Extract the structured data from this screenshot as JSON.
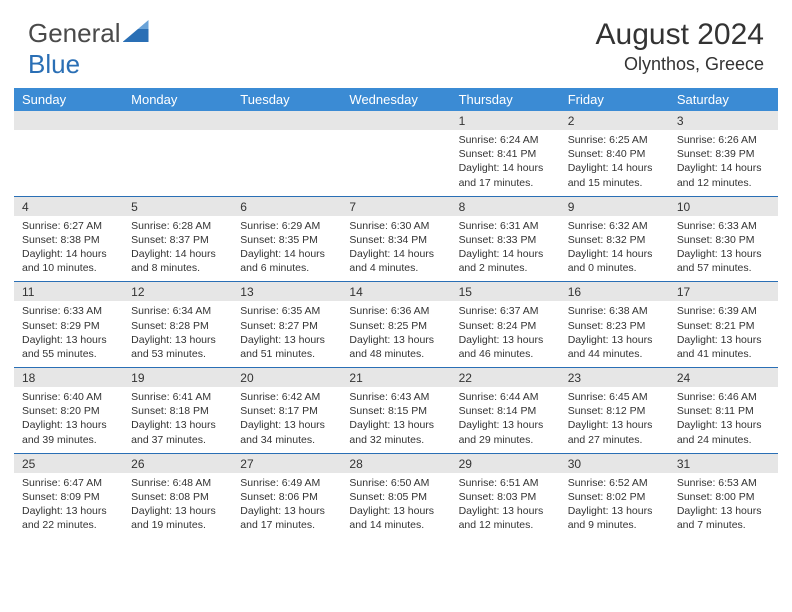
{
  "brand": {
    "part1": "General",
    "part2": "Blue"
  },
  "title": "August 2024",
  "location": "Olynthos, Greece",
  "colors": {
    "header_bg": "#3b8bd4",
    "band_bg": "#e6e6e6",
    "week_border": "#2a6fb5",
    "text": "#333333",
    "brand_blue": "#2a6fb5"
  },
  "day_names": [
    "Sunday",
    "Monday",
    "Tuesday",
    "Wednesday",
    "Thursday",
    "Friday",
    "Saturday"
  ],
  "weeks": [
    [
      {
        "num": "",
        "lines": []
      },
      {
        "num": "",
        "lines": []
      },
      {
        "num": "",
        "lines": []
      },
      {
        "num": "",
        "lines": []
      },
      {
        "num": "1",
        "lines": [
          "Sunrise: 6:24 AM",
          "Sunset: 8:41 PM",
          "Daylight: 14 hours",
          "and 17 minutes."
        ]
      },
      {
        "num": "2",
        "lines": [
          "Sunrise: 6:25 AM",
          "Sunset: 8:40 PM",
          "Daylight: 14 hours",
          "and 15 minutes."
        ]
      },
      {
        "num": "3",
        "lines": [
          "Sunrise: 6:26 AM",
          "Sunset: 8:39 PM",
          "Daylight: 14 hours",
          "and 12 minutes."
        ]
      }
    ],
    [
      {
        "num": "4",
        "lines": [
          "Sunrise: 6:27 AM",
          "Sunset: 8:38 PM",
          "Daylight: 14 hours",
          "and 10 minutes."
        ]
      },
      {
        "num": "5",
        "lines": [
          "Sunrise: 6:28 AM",
          "Sunset: 8:37 PM",
          "Daylight: 14 hours",
          "and 8 minutes."
        ]
      },
      {
        "num": "6",
        "lines": [
          "Sunrise: 6:29 AM",
          "Sunset: 8:35 PM",
          "Daylight: 14 hours",
          "and 6 minutes."
        ]
      },
      {
        "num": "7",
        "lines": [
          "Sunrise: 6:30 AM",
          "Sunset: 8:34 PM",
          "Daylight: 14 hours",
          "and 4 minutes."
        ]
      },
      {
        "num": "8",
        "lines": [
          "Sunrise: 6:31 AM",
          "Sunset: 8:33 PM",
          "Daylight: 14 hours",
          "and 2 minutes."
        ]
      },
      {
        "num": "9",
        "lines": [
          "Sunrise: 6:32 AM",
          "Sunset: 8:32 PM",
          "Daylight: 14 hours",
          "and 0 minutes."
        ]
      },
      {
        "num": "10",
        "lines": [
          "Sunrise: 6:33 AM",
          "Sunset: 8:30 PM",
          "Daylight: 13 hours",
          "and 57 minutes."
        ]
      }
    ],
    [
      {
        "num": "11",
        "lines": [
          "Sunrise: 6:33 AM",
          "Sunset: 8:29 PM",
          "Daylight: 13 hours",
          "and 55 minutes."
        ]
      },
      {
        "num": "12",
        "lines": [
          "Sunrise: 6:34 AM",
          "Sunset: 8:28 PM",
          "Daylight: 13 hours",
          "and 53 minutes."
        ]
      },
      {
        "num": "13",
        "lines": [
          "Sunrise: 6:35 AM",
          "Sunset: 8:27 PM",
          "Daylight: 13 hours",
          "and 51 minutes."
        ]
      },
      {
        "num": "14",
        "lines": [
          "Sunrise: 6:36 AM",
          "Sunset: 8:25 PM",
          "Daylight: 13 hours",
          "and 48 minutes."
        ]
      },
      {
        "num": "15",
        "lines": [
          "Sunrise: 6:37 AM",
          "Sunset: 8:24 PM",
          "Daylight: 13 hours",
          "and 46 minutes."
        ]
      },
      {
        "num": "16",
        "lines": [
          "Sunrise: 6:38 AM",
          "Sunset: 8:23 PM",
          "Daylight: 13 hours",
          "and 44 minutes."
        ]
      },
      {
        "num": "17",
        "lines": [
          "Sunrise: 6:39 AM",
          "Sunset: 8:21 PM",
          "Daylight: 13 hours",
          "and 41 minutes."
        ]
      }
    ],
    [
      {
        "num": "18",
        "lines": [
          "Sunrise: 6:40 AM",
          "Sunset: 8:20 PM",
          "Daylight: 13 hours",
          "and 39 minutes."
        ]
      },
      {
        "num": "19",
        "lines": [
          "Sunrise: 6:41 AM",
          "Sunset: 8:18 PM",
          "Daylight: 13 hours",
          "and 37 minutes."
        ]
      },
      {
        "num": "20",
        "lines": [
          "Sunrise: 6:42 AM",
          "Sunset: 8:17 PM",
          "Daylight: 13 hours",
          "and 34 minutes."
        ]
      },
      {
        "num": "21",
        "lines": [
          "Sunrise: 6:43 AM",
          "Sunset: 8:15 PM",
          "Daylight: 13 hours",
          "and 32 minutes."
        ]
      },
      {
        "num": "22",
        "lines": [
          "Sunrise: 6:44 AM",
          "Sunset: 8:14 PM",
          "Daylight: 13 hours",
          "and 29 minutes."
        ]
      },
      {
        "num": "23",
        "lines": [
          "Sunrise: 6:45 AM",
          "Sunset: 8:12 PM",
          "Daylight: 13 hours",
          "and 27 minutes."
        ]
      },
      {
        "num": "24",
        "lines": [
          "Sunrise: 6:46 AM",
          "Sunset: 8:11 PM",
          "Daylight: 13 hours",
          "and 24 minutes."
        ]
      }
    ],
    [
      {
        "num": "25",
        "lines": [
          "Sunrise: 6:47 AM",
          "Sunset: 8:09 PM",
          "Daylight: 13 hours",
          "and 22 minutes."
        ]
      },
      {
        "num": "26",
        "lines": [
          "Sunrise: 6:48 AM",
          "Sunset: 8:08 PM",
          "Daylight: 13 hours",
          "and 19 minutes."
        ]
      },
      {
        "num": "27",
        "lines": [
          "Sunrise: 6:49 AM",
          "Sunset: 8:06 PM",
          "Daylight: 13 hours",
          "and 17 minutes."
        ]
      },
      {
        "num": "28",
        "lines": [
          "Sunrise: 6:50 AM",
          "Sunset: 8:05 PM",
          "Daylight: 13 hours",
          "and 14 minutes."
        ]
      },
      {
        "num": "29",
        "lines": [
          "Sunrise: 6:51 AM",
          "Sunset: 8:03 PM",
          "Daylight: 13 hours",
          "and 12 minutes."
        ]
      },
      {
        "num": "30",
        "lines": [
          "Sunrise: 6:52 AM",
          "Sunset: 8:02 PM",
          "Daylight: 13 hours",
          "and 9 minutes."
        ]
      },
      {
        "num": "31",
        "lines": [
          "Sunrise: 6:53 AM",
          "Sunset: 8:00 PM",
          "Daylight: 13 hours",
          "and 7 minutes."
        ]
      }
    ]
  ]
}
